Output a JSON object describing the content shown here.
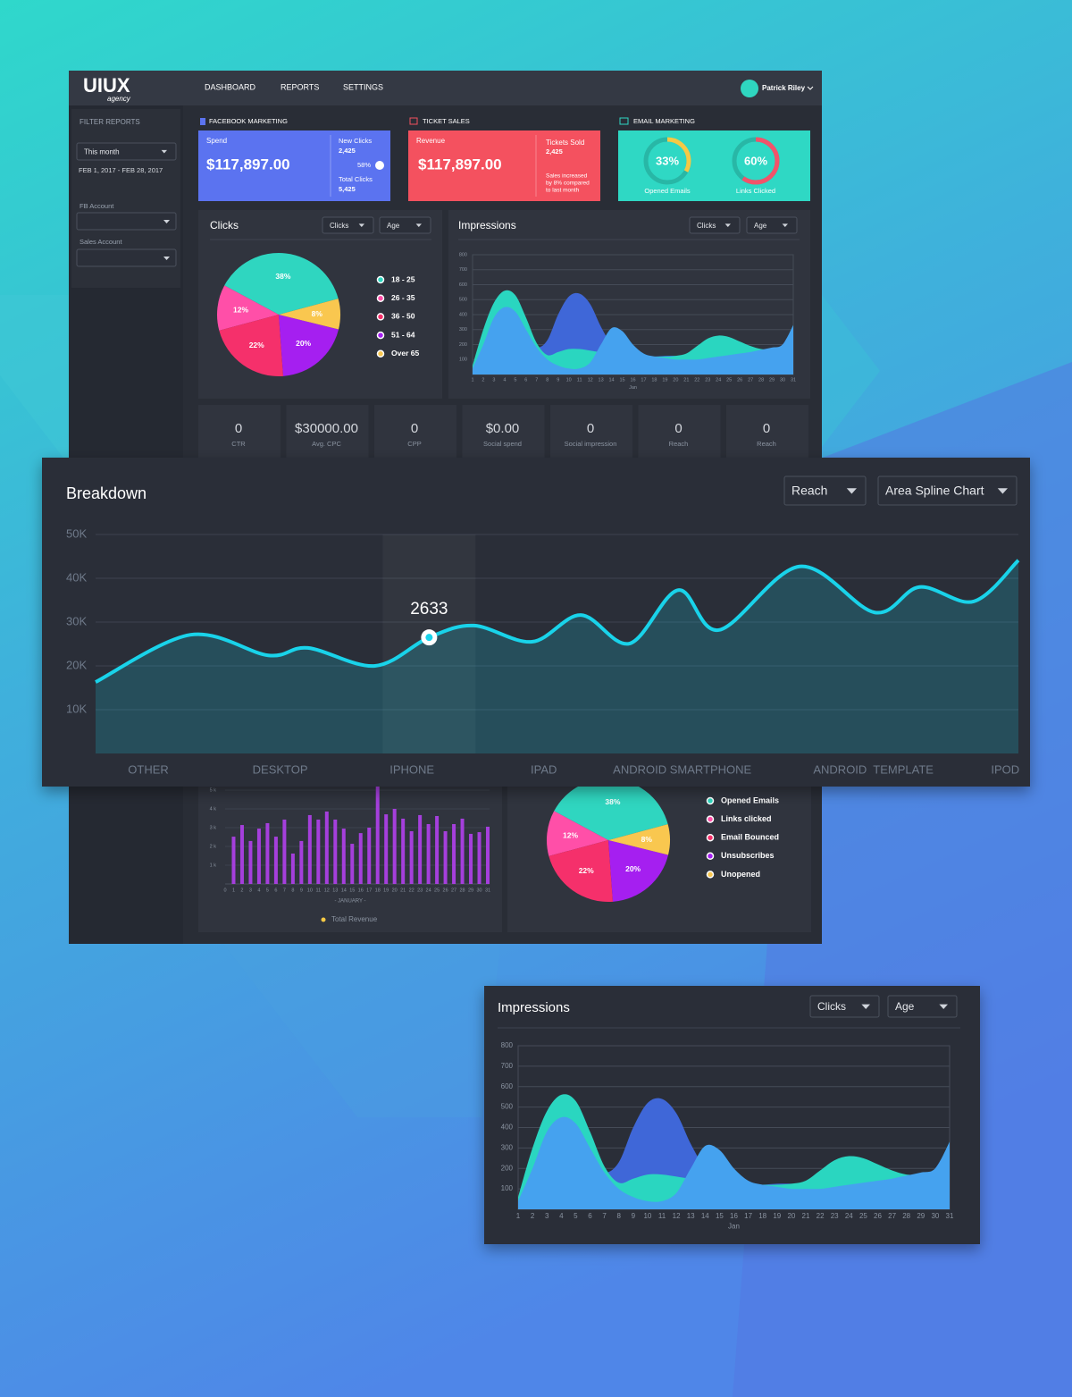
{
  "header": {
    "logo": "UIUX",
    "logo_sub": "agency",
    "nav": [
      "DASHBOARD",
      "REPORTS",
      "SETTINGS"
    ],
    "user": "Patrick Riley"
  },
  "sidebar": {
    "title": "FILTER REPORTS",
    "period": "This month",
    "range": "FEB 1, 2017 - FEB 28, 2017",
    "fields": [
      "FB Account",
      "Sales Account"
    ]
  },
  "cards": {
    "facebook": {
      "heading": "FACEBOOK MARKETING",
      "spend_label": "Spend",
      "spend": "$117,897.00",
      "new_clicks_label": "New Clicks",
      "new_clicks": "2,425",
      "pct": "58%",
      "total_clicks_label": "Total Clicks",
      "total_clicks": "5,425"
    },
    "tickets": {
      "heading": "TICKET SALES",
      "revenue_label": "Revenue",
      "revenue": "$117,897.00",
      "sold_label": "Tickets Sold",
      "sold": "2,425",
      "note": [
        "Sales increased",
        "by 8% compared",
        "to last month"
      ]
    },
    "email": {
      "heading": "EMAIL MARKETING",
      "type": "gauge",
      "categories": [
        "Opened Emails",
        "Links Clicked"
      ],
      "values": [
        33,
        60
      ],
      "value_labels": [
        "33%",
        "60%"
      ],
      "colors": [
        "#f5c945",
        "#f2536a"
      ]
    }
  },
  "clicks": {
    "title": "Clicks",
    "filters": [
      "Clicks",
      "Age"
    ],
    "chart": {
      "type": "pie",
      "categories": [
        "18 - 25",
        "26 - 35",
        "36 - 50",
        "51 - 64",
        "Over 65"
      ],
      "values": [
        38,
        12,
        22,
        20,
        8
      ],
      "value_labels": [
        "38%",
        "12%",
        "22%",
        "20%",
        "8%"
      ],
      "colors": [
        "#2fd6c0",
        "#ff4fa8",
        "#f5306b",
        "#a51ff0",
        "#f9c74f"
      ]
    }
  },
  "impressions": {
    "title": "Impressions",
    "filters": [
      "Clicks",
      "Age"
    ],
    "chart": {
      "type": "area",
      "categories": [
        "1",
        "2",
        "3",
        "4",
        "5",
        "6",
        "7",
        "8",
        "9",
        "10",
        "11",
        "12",
        "13",
        "14",
        "15",
        "16",
        "17",
        "18",
        "19",
        "20",
        "21",
        "22",
        "23",
        "24",
        "25",
        "26",
        "27",
        "28",
        "29",
        "30",
        "31"
      ],
      "x_label": "Jan",
      "ylim": [
        0,
        800
      ],
      "yticks": [
        100,
        200,
        300,
        400,
        500,
        600,
        700,
        800
      ],
      "grid": true,
      "series": [
        {
          "color": "#3f67d8",
          "values": [
            40,
            120,
            250,
            350,
            330,
            250,
            180,
            230,
            400,
            520,
            540,
            470,
            320,
            200,
            140,
            120,
            115,
            120,
            125,
            125,
            120,
            110,
            100,
            100,
            100,
            100,
            110,
            130,
            150,
            200,
            320
          ]
        },
        {
          "color": "#2ad6c0",
          "values": [
            60,
            300,
            480,
            560,
            530,
            380,
            210,
            130,
            150,
            170,
            170,
            160,
            150,
            150,
            140,
            130,
            125,
            120,
            120,
            125,
            140,
            190,
            240,
            260,
            250,
            220,
            190,
            170,
            170,
            190,
            330
          ]
        },
        {
          "color": "#45a2ef",
          "values": [
            40,
            200,
            380,
            450,
            420,
            300,
            180,
            100,
            60,
            40,
            40,
            80,
            200,
            310,
            290,
            200,
            140,
            120,
            110,
            100,
            100,
            100,
            110,
            120,
            130,
            140,
            150,
            165,
            180,
            200,
            330
          ]
        }
      ]
    }
  },
  "stats": [
    {
      "value": "0",
      "label": "CTR"
    },
    {
      "value": "$30000.00",
      "label": "Avg. CPC"
    },
    {
      "value": "0",
      "label": "CPP"
    },
    {
      "value": "$0.00",
      "label": "Social spend"
    },
    {
      "value": "0",
      "label": "Social impression"
    },
    {
      "value": "0",
      "label": "Reach"
    },
    {
      "value": "0",
      "label": "Reach"
    }
  ],
  "breakdown": {
    "title": "Breakdown",
    "filters": [
      "Reach",
      "Area Spline Chart"
    ],
    "annotation": "2633",
    "chart": {
      "type": "line",
      "color": "#19d3ea",
      "x": [
        -0.4,
        0.32,
        0.91,
        1.21,
        1.72,
        2.13,
        2.47,
        2.91,
        3.28,
        3.65,
        4.02,
        4.33,
        4.94,
        5.51,
        5.85,
        6.26,
        6.6
      ],
      "values": [
        16300,
        27100,
        22400,
        24100,
        20000,
        26500,
        29200,
        25500,
        31600,
        25100,
        37300,
        28200,
        42700,
        32200,
        38000,
        34700,
        44100
      ],
      "xlim": [
        -0.4,
        6.6
      ],
      "xticks": [
        {
          "value": 0,
          "label": "OTHER"
        },
        {
          "value": 1,
          "label": "DESKTOP"
        },
        {
          "value": 2,
          "label": "IPHONE"
        },
        {
          "value": 3,
          "label": "IPAD"
        },
        {
          "value": 4.05,
          "label": "ANDROID SMARTPHONE"
        },
        {
          "value": 5.5,
          "label": "ANDROID  TEMPLATE"
        },
        {
          "value": 6.5,
          "label": "IPOD"
        }
      ],
      "ylim": [
        0,
        50000
      ],
      "yticks": [
        {
          "value": 10000,
          "label": "10K"
        },
        {
          "value": 20000,
          "label": "20K"
        },
        {
          "value": 30000,
          "label": "30K"
        },
        {
          "value": 40000,
          "label": "40K"
        },
        {
          "value": 50000,
          "label": "50K"
        }
      ],
      "grid": true
    }
  },
  "revenue": {
    "chart": {
      "type": "bar",
      "color": "#a53fdc",
      "categories": [
        "0",
        "1",
        "2",
        "3",
        "4",
        "5",
        "6",
        "7",
        "8",
        "9",
        "10",
        "11",
        "12",
        "13",
        "14",
        "15",
        "16",
        "17",
        "18",
        "19",
        "20",
        "21",
        "22",
        "23",
        "24",
        "25",
        "26",
        "27",
        "28",
        "29",
        "30",
        "31"
      ],
      "values": [
        null,
        2520,
        3140,
        2290,
        2950,
        3240,
        2520,
        3430,
        1620,
        2290,
        3670,
        3430,
        3860,
        3430,
        2950,
        2140,
        2710,
        3000,
        5200,
        3710,
        4000,
        3480,
        2810,
        3670,
        3190,
        3620,
        2810,
        3190,
        3480,
        2670,
        2760,
        3050
      ],
      "ylim": [
        0,
        5000
      ],
      "yticks": [
        {
          "value": 1000,
          "label": "1 k"
        },
        {
          "value": 2000,
          "label": "2 k"
        },
        {
          "value": 3000,
          "label": "3 k"
        },
        {
          "value": 4000,
          "label": "4 k"
        },
        {
          "value": 5000,
          "label": "5 k"
        }
      ],
      "x_label": "- JANUARY -",
      "legend": "Total Revenue",
      "legend_color": "#f5c945",
      "grid": true
    }
  },
  "emails": {
    "chart": {
      "type": "pie",
      "categories": [
        "Opened Emails",
        "Links clicked",
        "Email Bounced",
        "Unsubscribes",
        "Unopened"
      ],
      "values": [
        38,
        12,
        22,
        20,
        8
      ],
      "value_labels": [
        "38%",
        "12%",
        "22%",
        "20%",
        "8%"
      ],
      "colors": [
        "#2fd6c0",
        "#ff4fa8",
        "#f5306b",
        "#a51ff0",
        "#f9c74f"
      ]
    }
  }
}
